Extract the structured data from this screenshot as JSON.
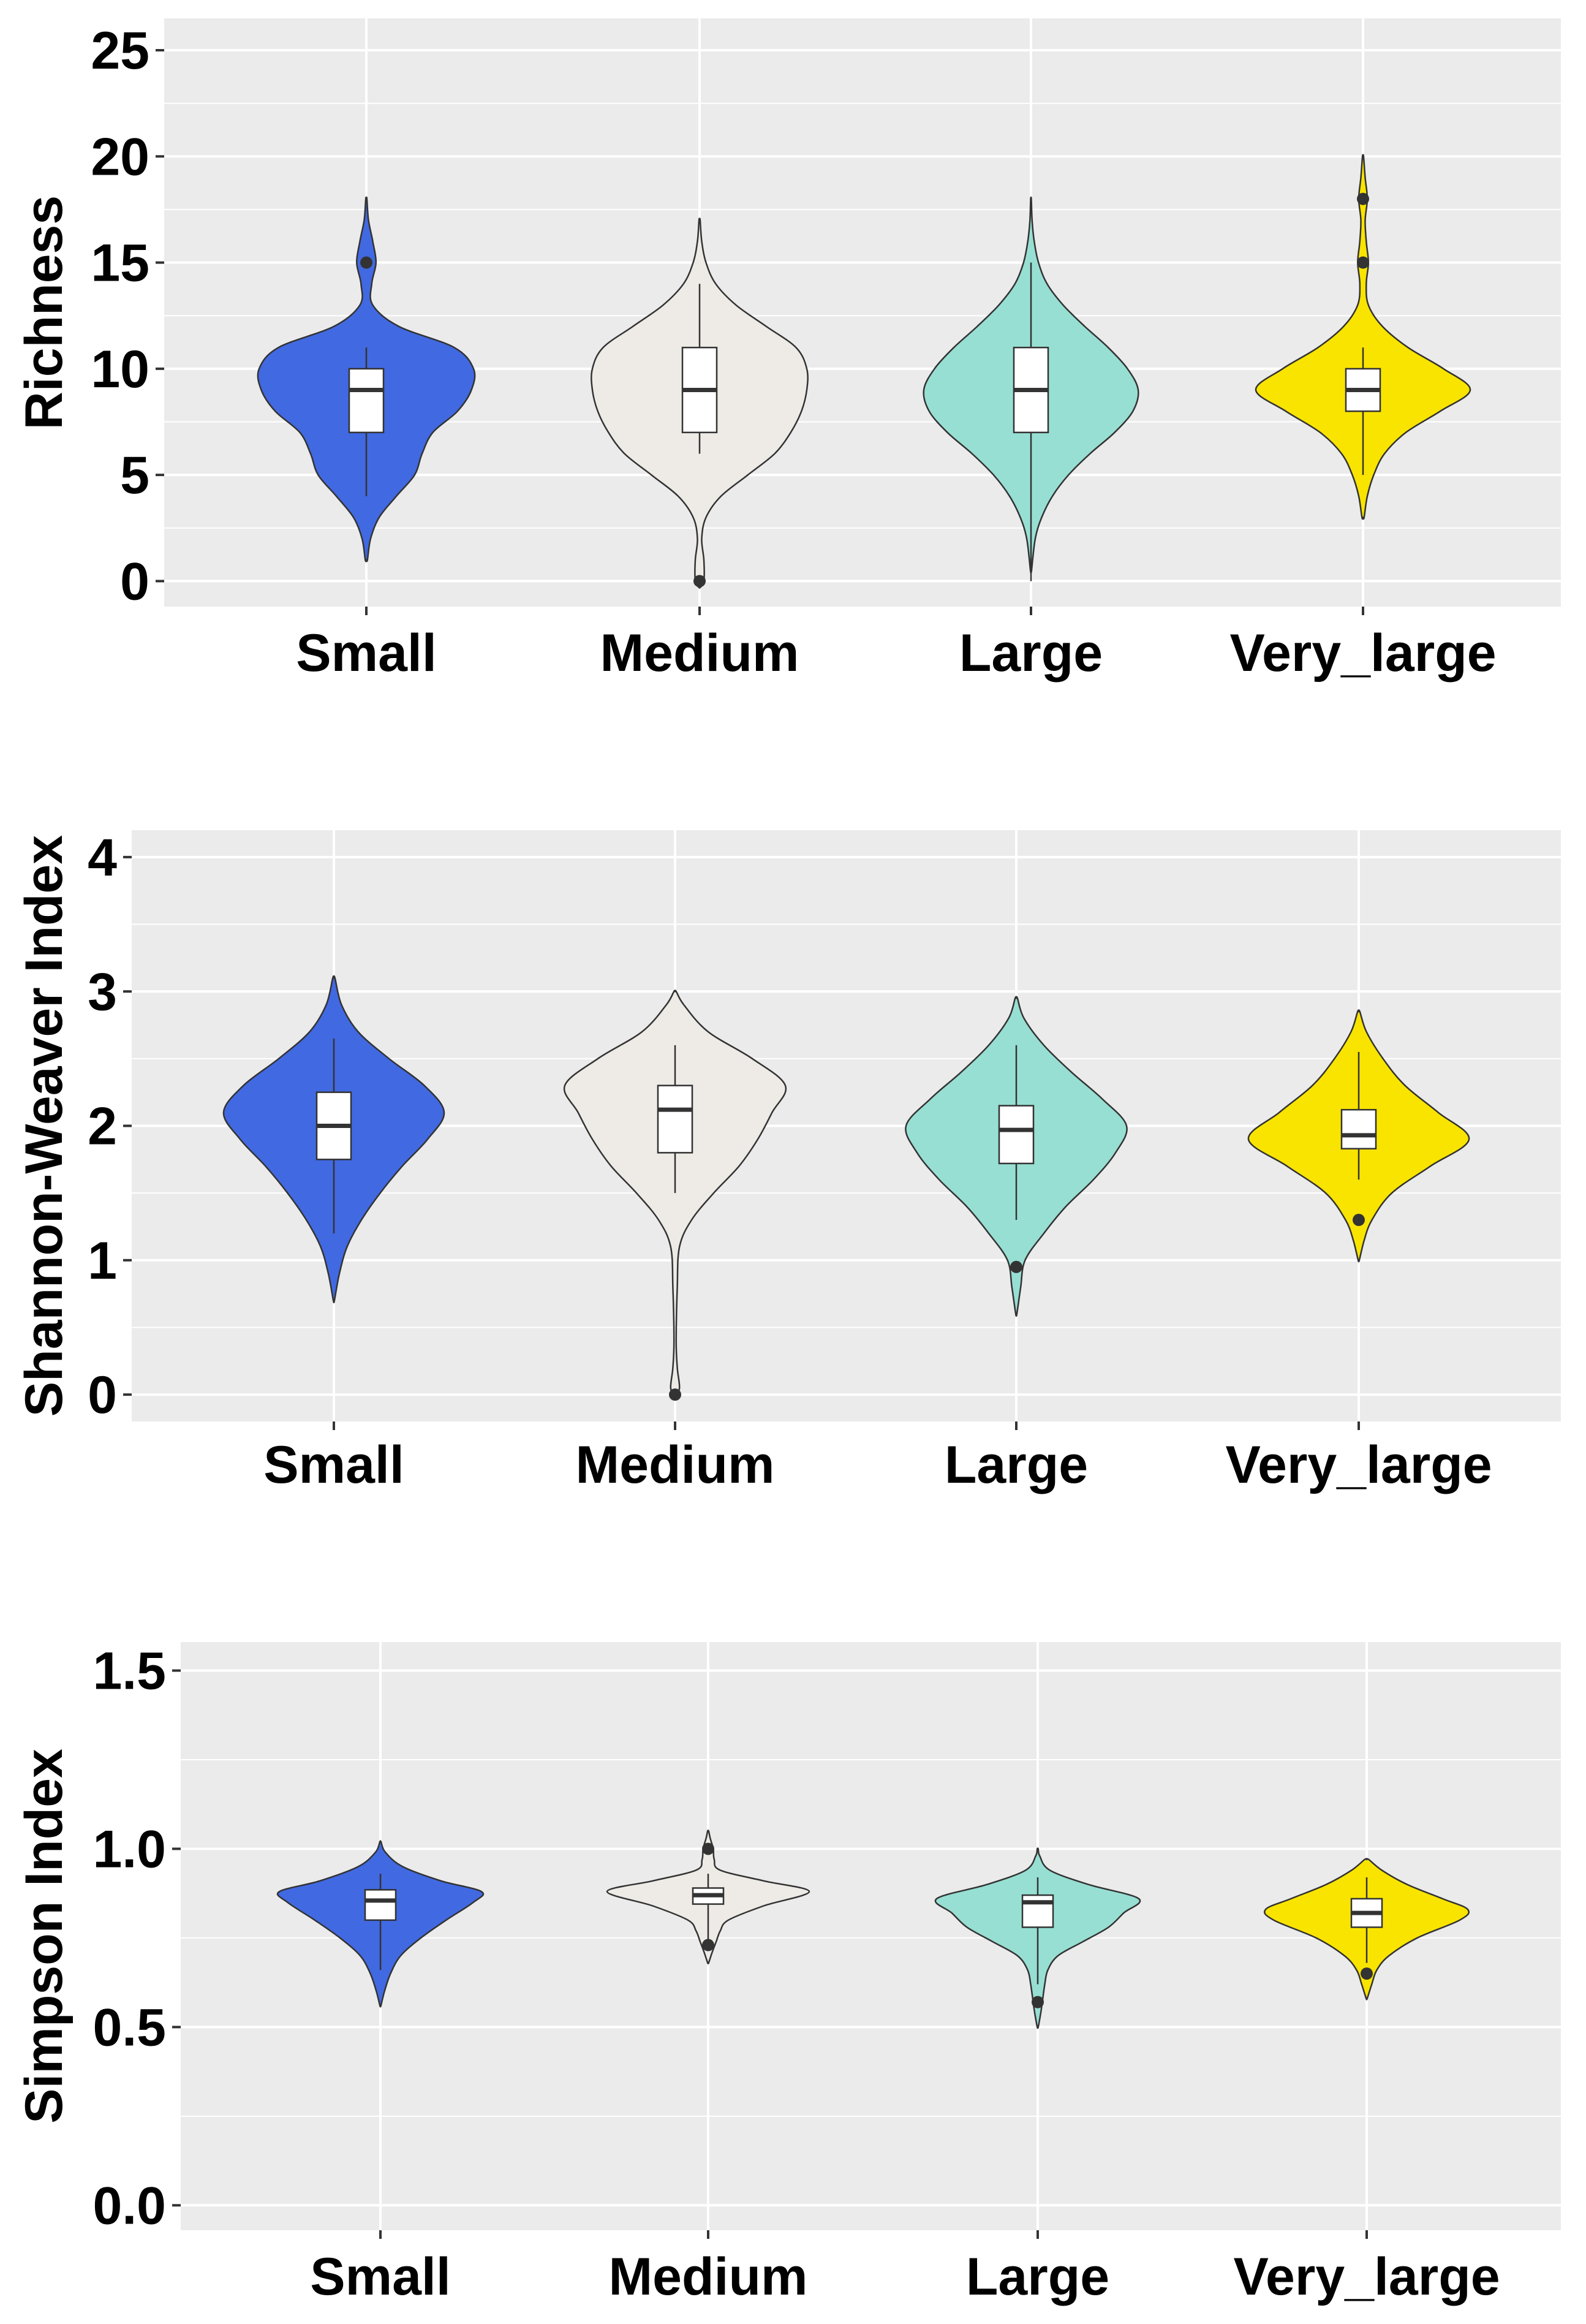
{
  "chart_data": [
    {
      "type": "violin",
      "ylabel": "Richness",
      "ylim": [
        -1.2,
        26.5
      ],
      "yticks": [
        0,
        5,
        10,
        15,
        20,
        25
      ],
      "ytick_labels": [
        "0",
        "5",
        "10",
        "15",
        "20",
        "25"
      ],
      "categories": [
        "Small",
        "Medium",
        "Large",
        "Very_large"
      ],
      "fill_colors": [
        "#4169E1",
        "#EEEBE6",
        "#97DFD3",
        "#F9E400"
      ],
      "series": [
        {
          "name": "Small",
          "min": 4,
          "q1": 7,
          "median": 9,
          "q3": 10,
          "max": 11,
          "outliers": [
            15
          ],
          "density": [
            [
              1,
              0.01
            ],
            [
              2,
              0.04
            ],
            [
              3,
              0.12
            ],
            [
              4,
              0.28
            ],
            [
              5,
              0.45
            ],
            [
              6,
              0.52
            ],
            [
              7,
              0.62
            ],
            [
              8,
              0.85
            ],
            [
              9,
              0.98
            ],
            [
              10,
              1.0
            ],
            [
              11,
              0.82
            ],
            [
              12,
              0.3
            ],
            [
              13,
              0.06
            ],
            [
              14,
              0.05
            ],
            [
              15,
              0.09
            ],
            [
              16,
              0.06
            ],
            [
              17,
              0.02
            ],
            [
              18,
              0.005
            ]
          ]
        },
        {
          "name": "Medium",
          "min": 6,
          "q1": 7,
          "median": 9,
          "q3": 11,
          "max": 14,
          "outliers": [
            0
          ],
          "density": [
            [
              -0.3,
              0.005
            ],
            [
              0,
              0.04
            ],
            [
              1,
              0.04
            ],
            [
              2,
              0.02
            ],
            [
              3,
              0.06
            ],
            [
              4,
              0.2
            ],
            [
              5,
              0.45
            ],
            [
              6,
              0.7
            ],
            [
              7,
              0.85
            ],
            [
              8,
              0.95
            ],
            [
              9,
              1.0
            ],
            [
              10,
              1.0
            ],
            [
              11,
              0.9
            ],
            [
              12,
              0.62
            ],
            [
              13,
              0.34
            ],
            [
              14,
              0.15
            ],
            [
              15,
              0.06
            ],
            [
              16,
              0.02
            ],
            [
              17,
              0.005
            ]
          ]
        },
        {
          "name": "Large",
          "min": 0,
          "q1": 7,
          "median": 9,
          "q3": 11,
          "max": 15,
          "outliers": [],
          "density": [
            [
              0.5,
              0.005
            ],
            [
              2,
              0.04
            ],
            [
              3,
              0.1
            ],
            [
              4,
              0.2
            ],
            [
              5,
              0.35
            ],
            [
              6,
              0.55
            ],
            [
              7,
              0.78
            ],
            [
              8,
              0.95
            ],
            [
              9,
              1.0
            ],
            [
              10,
              0.9
            ],
            [
              11,
              0.72
            ],
            [
              12,
              0.5
            ],
            [
              13,
              0.3
            ],
            [
              14,
              0.15
            ],
            [
              15,
              0.07
            ],
            [
              16,
              0.03
            ],
            [
              17,
              0.01
            ],
            [
              18,
              0.003
            ]
          ]
        },
        {
          "name": "Very_large",
          "min": 5,
          "q1": 8,
          "median": 9,
          "q3": 10,
          "max": 11,
          "outliers": [
            15,
            18
          ],
          "density": [
            [
              3,
              0.01
            ],
            [
              4,
              0.04
            ],
            [
              5,
              0.1
            ],
            [
              6,
              0.2
            ],
            [
              7,
              0.4
            ],
            [
              8,
              0.72
            ],
            [
              9,
              1.0
            ],
            [
              10,
              0.75
            ],
            [
              11,
              0.42
            ],
            [
              12,
              0.18
            ],
            [
              13,
              0.05
            ],
            [
              14,
              0.03
            ],
            [
              15,
              0.05
            ],
            [
              16,
              0.03
            ],
            [
              17,
              0.02
            ],
            [
              18,
              0.04
            ],
            [
              19,
              0.02
            ],
            [
              20,
              0.005
            ]
          ]
        }
      ]
    },
    {
      "type": "violin",
      "ylabel": "Shannon-Weaver Index",
      "ylim": [
        -0.2,
        4.2
      ],
      "yticks": [
        0,
        1,
        2,
        3,
        4
      ],
      "ytick_labels": [
        "0",
        "1",
        "2",
        "3",
        "4"
      ],
      "categories": [
        "Small",
        "Medium",
        "Large",
        "Very_large"
      ],
      "fill_colors": [
        "#4169E1",
        "#EEEBE6",
        "#97DFD3",
        "#F9E400"
      ],
      "series": [
        {
          "name": "Small",
          "min": 1.2,
          "q1": 1.75,
          "median": 2.0,
          "q3": 2.25,
          "max": 2.65,
          "outliers": [],
          "density": [
            [
              0.7,
              0.005
            ],
            [
              0.9,
              0.05
            ],
            [
              1.1,
              0.12
            ],
            [
              1.3,
              0.25
            ],
            [
              1.5,
              0.42
            ],
            [
              1.7,
              0.62
            ],
            [
              1.9,
              0.85
            ],
            [
              2.1,
              1.0
            ],
            [
              2.3,
              0.82
            ],
            [
              2.5,
              0.5
            ],
            [
              2.7,
              0.22
            ],
            [
              2.9,
              0.07
            ],
            [
              3.1,
              0.01
            ]
          ]
        },
        {
          "name": "Medium",
          "min": 1.5,
          "q1": 1.8,
          "median": 2.12,
          "q3": 2.3,
          "max": 2.6,
          "outliers": [
            0
          ],
          "density": [
            [
              -0.02,
              0.005
            ],
            [
              0.05,
              0.04
            ],
            [
              0.2,
              0.02
            ],
            [
              0.4,
              0.01
            ],
            [
              0.8,
              0.02
            ],
            [
              1.1,
              0.04
            ],
            [
              1.3,
              0.15
            ],
            [
              1.5,
              0.35
            ],
            [
              1.7,
              0.58
            ],
            [
              1.9,
              0.75
            ],
            [
              2.1,
              0.88
            ],
            [
              2.3,
              1.0
            ],
            [
              2.5,
              0.7
            ],
            [
              2.7,
              0.3
            ],
            [
              2.9,
              0.08
            ],
            [
              3.0,
              0.01
            ]
          ]
        },
        {
          "name": "Large",
          "min": 1.3,
          "q1": 1.72,
          "median": 1.97,
          "q3": 2.15,
          "max": 2.6,
          "outliers": [
            0.95
          ],
          "density": [
            [
              0.6,
              0.005
            ],
            [
              0.8,
              0.04
            ],
            [
              1.0,
              0.08
            ],
            [
              1.2,
              0.25
            ],
            [
              1.4,
              0.45
            ],
            [
              1.6,
              0.7
            ],
            [
              1.8,
              0.9
            ],
            [
              2.0,
              1.0
            ],
            [
              2.2,
              0.78
            ],
            [
              2.4,
              0.5
            ],
            [
              2.6,
              0.25
            ],
            [
              2.8,
              0.07
            ],
            [
              2.95,
              0.01
            ]
          ]
        },
        {
          "name": "Very_large",
          "min": 1.6,
          "q1": 1.83,
          "median": 1.93,
          "q3": 2.12,
          "max": 2.55,
          "outliers": [
            1.3
          ],
          "density": [
            [
              1.0,
              0.005
            ],
            [
              1.15,
              0.05
            ],
            [
              1.3,
              0.12
            ],
            [
              1.5,
              0.3
            ],
            [
              1.7,
              0.65
            ],
            [
              1.9,
              1.0
            ],
            [
              2.1,
              0.72
            ],
            [
              2.3,
              0.42
            ],
            [
              2.5,
              0.22
            ],
            [
              2.7,
              0.07
            ],
            [
              2.85,
              0.01
            ]
          ]
        }
      ]
    },
    {
      "type": "violin",
      "ylabel": "Simpson Index",
      "ylim": [
        -0.07,
        1.58
      ],
      "yticks": [
        0.0,
        0.5,
        1.0,
        1.5
      ],
      "ytick_labels": [
        "0.0",
        "0.5",
        "1.0",
        "1.5"
      ],
      "categories": [
        "Small",
        "Medium",
        "Large",
        "Very_large"
      ],
      "fill_colors": [
        "#4169E1",
        "#EEEBE6",
        "#97DFD3",
        "#F9E400"
      ],
      "series": [
        {
          "name": "Small",
          "min": 0.66,
          "q1": 0.8,
          "median": 0.855,
          "q3": 0.885,
          "max": 0.93,
          "outliers": [],
          "density": [
            [
              0.56,
              0.005
            ],
            [
              0.6,
              0.04
            ],
            [
              0.65,
              0.1
            ],
            [
              0.7,
              0.2
            ],
            [
              0.75,
              0.4
            ],
            [
              0.8,
              0.65
            ],
            [
              0.85,
              0.92
            ],
            [
              0.88,
              1.0
            ],
            [
              0.91,
              0.6
            ],
            [
              0.95,
              0.22
            ],
            [
              0.99,
              0.05
            ],
            [
              1.02,
              0.005
            ]
          ]
        },
        {
          "name": "Medium",
          "min": 0.73,
          "q1": 0.845,
          "median": 0.87,
          "q3": 0.89,
          "max": 0.93,
          "outliers": [
            0.73,
            1.0
          ],
          "density": [
            [
              0.68,
              0.005
            ],
            [
              0.71,
              0.04
            ],
            [
              0.74,
              0.08
            ],
            [
              0.77,
              0.12
            ],
            [
              0.8,
              0.2
            ],
            [
              0.84,
              0.55
            ],
            [
              0.88,
              1.0
            ],
            [
              0.91,
              0.55
            ],
            [
              0.94,
              0.12
            ],
            [
              0.97,
              0.06
            ],
            [
              1.0,
              0.05
            ],
            [
              1.03,
              0.02
            ],
            [
              1.05,
              0.005
            ]
          ]
        },
        {
          "name": "Large",
          "min": 0.62,
          "q1": 0.78,
          "median": 0.85,
          "q3": 0.87,
          "max": 0.92,
          "outliers": [
            0.57
          ],
          "density": [
            [
              0.5,
              0.005
            ],
            [
              0.54,
              0.03
            ],
            [
              0.58,
              0.05
            ],
            [
              0.62,
              0.07
            ],
            [
              0.66,
              0.1
            ],
            [
              0.7,
              0.2
            ],
            [
              0.74,
              0.45
            ],
            [
              0.78,
              0.7
            ],
            [
              0.82,
              0.85
            ],
            [
              0.86,
              1.0
            ],
            [
              0.9,
              0.5
            ],
            [
              0.94,
              0.12
            ],
            [
              0.98,
              0.02
            ],
            [
              1.0,
              0.005
            ]
          ]
        },
        {
          "name": "Very_large",
          "min": 0.68,
          "q1": 0.78,
          "median": 0.82,
          "q3": 0.86,
          "max": 0.92,
          "outliers": [
            0.65
          ],
          "density": [
            [
              0.58,
              0.005
            ],
            [
              0.62,
              0.05
            ],
            [
              0.66,
              0.1
            ],
            [
              0.7,
              0.22
            ],
            [
              0.75,
              0.5
            ],
            [
              0.8,
              0.92
            ],
            [
              0.83,
              1.0
            ],
            [
              0.86,
              0.75
            ],
            [
              0.9,
              0.4
            ],
            [
              0.94,
              0.15
            ],
            [
              0.97,
              0.02
            ]
          ]
        }
      ]
    }
  ]
}
